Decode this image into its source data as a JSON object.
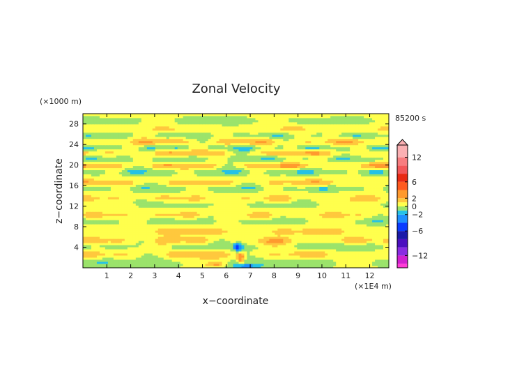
{
  "chart_data": {
    "type": "heatmap",
    "title": "Zonal Velocity",
    "xlabel": "x−coordinate",
    "ylabel": "z−coordinate",
    "x_unit": "(×1E4 m)",
    "y_unit": "(×1000 m)",
    "time_label": "85200 s",
    "xlim": [
      0,
      12.8
    ],
    "ylim": [
      0,
      30
    ],
    "x_ticks": [
      "1",
      "2",
      "3",
      "4",
      "5",
      "6",
      "7",
      "8",
      "9",
      "10",
      "11",
      "12"
    ],
    "y_ticks": [
      "4",
      "8",
      "12",
      "16",
      "20",
      "24",
      "28"
    ],
    "colorbar": {
      "range": [
        -15,
        15
      ],
      "tick_labels": [
        "12",
        "6",
        "2",
        "0",
        "−2",
        "−6",
        "−12"
      ],
      "tick_values": [
        12,
        6,
        2,
        0,
        -2,
        -6,
        -12
      ],
      "levels": [
        {
          "from": -15,
          "to": -14,
          "color": "#ff3bd6"
        },
        {
          "from": -14,
          "to": -12,
          "color": "#d11fd0"
        },
        {
          "from": -12,
          "to": -10,
          "color": "#8a2be2"
        },
        {
          "from": -10,
          "to": -8,
          "color": "#4b0fbf"
        },
        {
          "from": -8,
          "to": -6,
          "color": "#1a1aa8"
        },
        {
          "from": -6,
          "to": -4,
          "color": "#0a3cff"
        },
        {
          "from": -4,
          "to": -2,
          "color": "#1e90ff"
        },
        {
          "from": -2,
          "to": -1,
          "color": "#25c2e6"
        },
        {
          "from": -1,
          "to": 0,
          "color": "#9be36b"
        },
        {
          "from": 0,
          "to": 1,
          "color": "#ffff4d"
        },
        {
          "from": 1,
          "to": 2,
          "color": "#ffc83d"
        },
        {
          "from": 2,
          "to": 4,
          "color": "#ff9a2e"
        },
        {
          "from": 4,
          "to": 6,
          "color": "#ff5a1f"
        },
        {
          "from": 6,
          "to": 8,
          "color": "#e82a14"
        },
        {
          "from": 8,
          "to": 10,
          "color": "#f2575a"
        },
        {
          "from": 10,
          "to": 12,
          "color": "#f77d80"
        },
        {
          "from": 12,
          "to": 15,
          "color": "#fbb0b3"
        }
      ]
    },
    "bands": [
      {
        "z": 1.0,
        "amp": -1.2,
        "width": 1.2,
        "kx": 0.9,
        "phase": 0.3
      },
      {
        "z": 2.6,
        "amp": 1.6,
        "width": 1.0,
        "kx": 1.4,
        "phase": 1.1
      },
      {
        "z": 4.3,
        "amp": -1.4,
        "width": 0.9,
        "kx": 1.1,
        "phase": 2.0
      },
      {
        "z": 5.2,
        "amp": 1.8,
        "width": 0.8,
        "kx": 1.7,
        "phase": 0.7
      },
      {
        "z": 7.1,
        "amp": 1.3,
        "width": 0.9,
        "kx": 1.2,
        "phase": 2.6
      },
      {
        "z": 9.2,
        "amp": -1.1,
        "width": 0.8,
        "kx": 1.5,
        "phase": 1.8
      },
      {
        "z": 10.2,
        "amp": 1.4,
        "width": 0.8,
        "kx": 1.9,
        "phase": 0.2
      },
      {
        "z": 12.6,
        "amp": -1.0,
        "width": 0.8,
        "kx": 1.3,
        "phase": 3.1
      },
      {
        "z": 13.4,
        "amp": 1.5,
        "width": 0.8,
        "kx": 1.6,
        "phase": 1.4
      },
      {
        "z": 15.5,
        "amp": -1.3,
        "width": 0.7,
        "kx": 1.8,
        "phase": 2.3
      },
      {
        "z": 16.6,
        "amp": 1.7,
        "width": 0.7,
        "kx": 1.4,
        "phase": 0.9
      },
      {
        "z": 18.7,
        "amp": -1.6,
        "width": 0.7,
        "kx": 1.9,
        "phase": 2.9
      },
      {
        "z": 19.9,
        "amp": 2.1,
        "width": 0.7,
        "kx": 1.5,
        "phase": 1.6
      },
      {
        "z": 21.2,
        "amp": -1.3,
        "width": 0.7,
        "kx": 1.8,
        "phase": 0.4
      },
      {
        "z": 22.4,
        "amp": 2.0,
        "width": 0.7,
        "kx": 1.3,
        "phase": 2.2
      },
      {
        "z": 23.3,
        "amp": -1.7,
        "width": 0.6,
        "kx": 2.0,
        "phase": 1.0
      },
      {
        "z": 24.6,
        "amp": 1.8,
        "width": 0.7,
        "kx": 1.6,
        "phase": 3.0
      },
      {
        "z": 25.8,
        "amp": -1.2,
        "width": 0.7,
        "kx": 1.7,
        "phase": 0.6
      },
      {
        "z": 27.0,
        "amp": 1.0,
        "width": 0.8,
        "kx": 1.4,
        "phase": 2.4
      },
      {
        "z": 28.6,
        "amp": -0.9,
        "width": 0.8,
        "kx": 1.2,
        "phase": 1.2
      }
    ],
    "features": [
      {
        "x": 6.5,
        "z": 4.0,
        "amp": -4.5,
        "sx": 0.15,
        "sz": 0.8
      },
      {
        "x": 6.6,
        "z": 2.0,
        "amp": 3.5,
        "sx": 0.15,
        "sz": 1.2
      },
      {
        "x": 6.8,
        "z": 0.4,
        "amp": -2.5,
        "sx": 0.6,
        "sz": 0.4
      },
      {
        "x": 5.6,
        "z": 0.7,
        "amp": 2.0,
        "sx": 0.4,
        "sz": 0.5
      }
    ]
  }
}
